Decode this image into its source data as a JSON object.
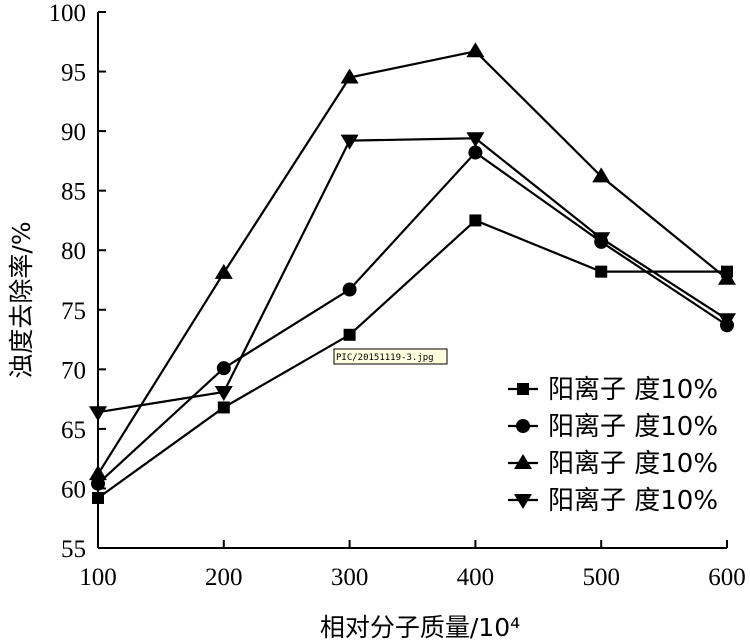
{
  "chart_data": {
    "type": "line",
    "title": "",
    "xlabel": "相对分子质量/10⁴",
    "ylabel": "浊度去除率/%",
    "x": [
      100,
      200,
      300,
      400,
      500,
      600
    ],
    "xlim": [
      100,
      600
    ],
    "ylim": [
      55,
      100
    ],
    "x_ticks": [
      100,
      200,
      300,
      400,
      500,
      600
    ],
    "y_ticks": [
      55,
      60,
      65,
      70,
      75,
      80,
      85,
      90,
      95,
      100
    ],
    "grid": false,
    "legend_position": "bottom-right",
    "series": [
      {
        "name": "阳离子 度10%",
        "marker": "square",
        "values": [
          59.2,
          66.8,
          72.9,
          82.5,
          78.2,
          78.2
        ]
      },
      {
        "name": "阳离子 度10%",
        "marker": "circle",
        "values": [
          60.4,
          70.1,
          76.7,
          88.2,
          80.7,
          73.7
        ]
      },
      {
        "name": "阳离子 度10%",
        "marker": "triangle-up",
        "values": [
          61.2,
          78.1,
          94.5,
          96.7,
          86.2,
          77.6
        ]
      },
      {
        "name": "阳离子 度10%",
        "marker": "triangle-down",
        "values": [
          66.4,
          68.1,
          89.2,
          89.4,
          81.0,
          74.2
        ]
      }
    ]
  },
  "watermark": "PIC/20151119-3.jpg"
}
